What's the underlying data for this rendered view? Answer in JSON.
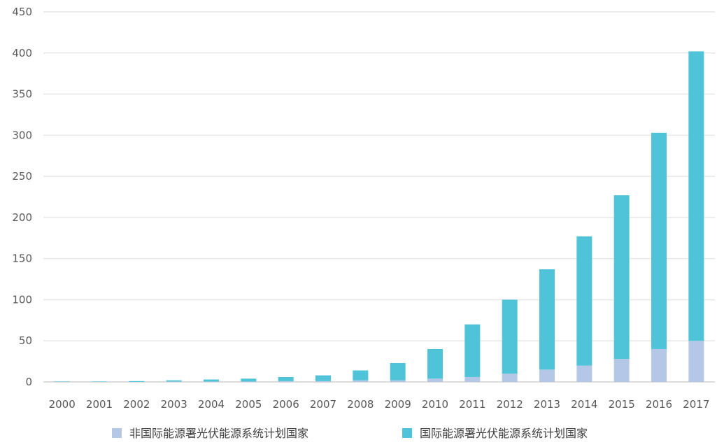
{
  "chart_data": {
    "type": "bar",
    "stacked": true,
    "categories": [
      "2000",
      "2001",
      "2002",
      "2003",
      "2004",
      "2005",
      "2006",
      "2007",
      "2008",
      "2009",
      "2010",
      "2011",
      "2012",
      "2013",
      "2014",
      "2015",
      "2016",
      "2017"
    ],
    "series": [
      {
        "name": "非国际能源署光伏能源系统计划国家",
        "color": "#b4c7e7",
        "values": [
          0,
          0,
          0,
          0.5,
          0.5,
          0.5,
          1,
          1,
          2,
          2,
          4,
          6,
          10,
          15,
          20,
          28,
          40,
          50
        ]
      },
      {
        "name": "国际能源署光伏能源系统计划国家",
        "color": "#4fc4d8",
        "values": [
          0.5,
          0.5,
          1,
          1.5,
          2.5,
          3.5,
          5,
          7,
          12,
          21,
          36,
          64,
          90,
          122,
          157,
          199,
          263,
          352
        ]
      }
    ],
    "yticks": [
      0,
      50,
      100,
      150,
      200,
      250,
      300,
      350,
      400,
      450
    ],
    "ylim": [
      0,
      450
    ],
    "grid": true,
    "legend_position": "bottom",
    "title": "",
    "xlabel": "",
    "ylabel": ""
  }
}
